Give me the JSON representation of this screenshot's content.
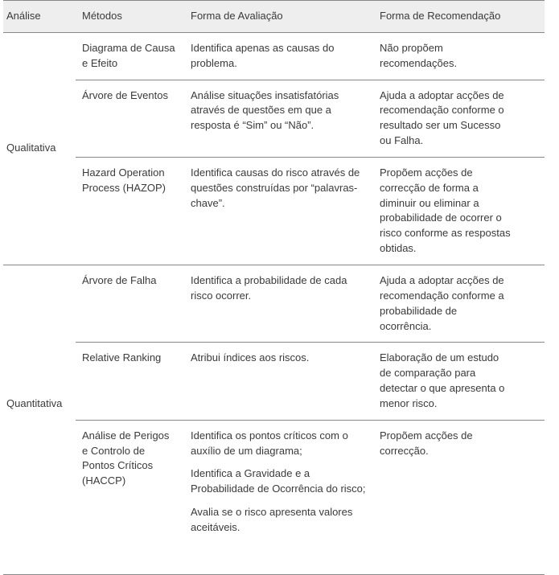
{
  "columns": {
    "analise": "Análise",
    "metodos": "Métodos",
    "avaliacao": "Forma de Avaliação",
    "recomendacao": "Forma de Recomendação"
  },
  "groups": {
    "qualitativa": {
      "label": "Qualitativa",
      "rows": {
        "causa_efeito": {
          "metodo": "Diagrama de Causa e Efeito",
          "avaliacao": "Identifica apenas as causas do problema.",
          "recomendacao": "Não propõem recomendações."
        },
        "arvore_eventos": {
          "metodo": "Árvore de Eventos",
          "avaliacao": "Análise situações insatisfatórias através de questões em que a resposta é “Sim” ou “Não”.",
          "recomendacao": "Ajuda a adoptar acções de recomendação conforme o resultado ser um Sucesso ou Falha."
        },
        "hazop": {
          "metodo": "Hazard Operation Process (HAZOP)",
          "avaliacao": "Identifica causas do risco através de questões construídas por “palavras-chave”.",
          "recomendacao": "Propõem acções de correcção de forma a diminuir ou eliminar a probabilidade de ocorrer o risco conforme as respostas obtidas."
        }
      }
    },
    "quantitativa": {
      "label": "Quantitativa",
      "rows": {
        "arvore_falha": {
          "metodo": "Árvore de Falha",
          "avaliacao": "Identifica a probabilidade de cada risco ocorrer.",
          "recomendacao": "Ajuda a adoptar acções de recomendação conforme a probabilidade de ocorrência."
        },
        "relative_ranking": {
          "metodo": "Relative Ranking",
          "avaliacao": "Atribui índices aos riscos.",
          "recomendacao": "Elaboração de um estudo de comparação para detectar o que apresenta o menor risco."
        },
        "haccp": {
          "metodo": "Análise de Perigos e Controlo de Pontos Críticos (HACCP)",
          "avaliacao_p1": "Identifica os pontos críticos com o auxílio de um diagrama;",
          "avaliacao_p2": "Identifica a Gravidade e a Probabilidade de Ocorrência do risco;",
          "avaliacao_p3": "Avalia se o risco apresenta valores aceitáveis.",
          "recomendacao": "Propõem acções de correcção."
        }
      }
    }
  }
}
